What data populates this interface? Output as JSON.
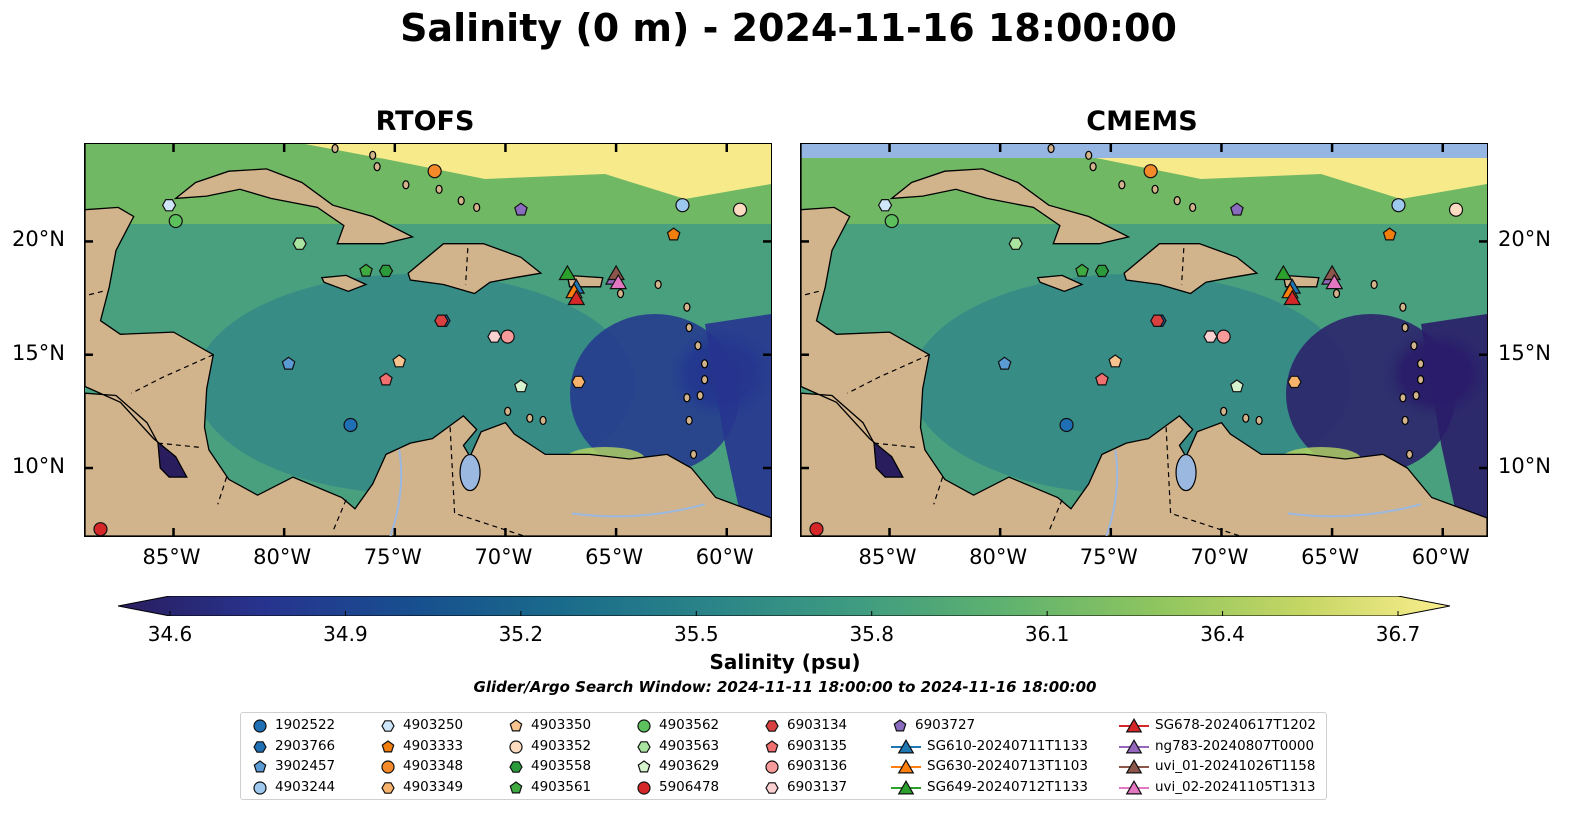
{
  "title": "Salinity (0 m) - 2024-11-16 18:00:00",
  "panels": [
    {
      "title": "RTOFS"
    },
    {
      "title": "CMEMS"
    }
  ],
  "axes": {
    "lon_ticks": [
      "85°W",
      "80°W",
      "75°W",
      "70°W",
      "65°W",
      "60°W"
    ],
    "lat_ticks": [
      "20°N",
      "15°N",
      "10°N"
    ],
    "lon_range": [
      -89,
      -58
    ],
    "lat_range": [
      7,
      24.3
    ]
  },
  "colorbar": {
    "label": "Salinity (psu)",
    "ticks": [
      "34.6",
      "34.9",
      "35.2",
      "35.5",
      "35.8",
      "36.1",
      "36.4",
      "36.7"
    ],
    "min": 34.6,
    "max": 36.7,
    "colormap": "haline-like",
    "colors": [
      "#2a1d5e",
      "#27348f",
      "#174f8f",
      "#1a6b8b",
      "#2a8488",
      "#3f9c80",
      "#5fb26f",
      "#8ec55f",
      "#c5d664",
      "#fbee8e"
    ]
  },
  "search_window": "Glider/Argo Search Window: 2024-11-11 18:00:00 to 2024-11-16 18:00:00",
  "colors": {
    "land": "#d2b48c",
    "lake": "#9ab8e0",
    "low_salinity": "#2a1d5e",
    "mid_salinity": "#3f9c80",
    "high_salinity": "#fbee8e"
  },
  "legend": [
    {
      "label": "1902522",
      "marker": "circle",
      "color": "#1f6fb5"
    },
    {
      "label": "2903766",
      "marker": "hexagon",
      "color": "#1f6fb5"
    },
    {
      "label": "3902457",
      "marker": "pentagon",
      "color": "#5b9bd5"
    },
    {
      "label": "4903244",
      "marker": "circle",
      "color": "#9ec9ef"
    },
    {
      "label": "4903250",
      "marker": "hexagon",
      "color": "#cfe6f8"
    },
    {
      "label": "4903333",
      "marker": "pentagon",
      "color": "#f07f0e"
    },
    {
      "label": "4903348",
      "marker": "circle",
      "color": "#f48a2a"
    },
    {
      "label": "4903349",
      "marker": "hexagon",
      "color": "#f7b36b"
    },
    {
      "label": "4903350",
      "marker": "pentagon",
      "color": "#f7c48f"
    },
    {
      "label": "4903352",
      "marker": "circle",
      "color": "#fbdcc0"
    },
    {
      "label": "4903558",
      "marker": "hexagon",
      "color": "#2a9a3a"
    },
    {
      "label": "4903561",
      "marker": "pentagon",
      "color": "#3faa3f"
    },
    {
      "label": "4903562",
      "marker": "circle",
      "color": "#5cc05c"
    },
    {
      "label": "4903563",
      "marker": "hexagon",
      "color": "#a9e5a0"
    },
    {
      "label": "4903629",
      "marker": "pentagon",
      "color": "#d6f5cf"
    },
    {
      "label": "5906478",
      "marker": "circle",
      "color": "#d62728"
    },
    {
      "label": "6903134",
      "marker": "hexagon",
      "color": "#d94040"
    },
    {
      "label": "6903135",
      "marker": "pentagon",
      "color": "#f07070"
    },
    {
      "label": "6903136",
      "marker": "circle",
      "color": "#f79a9a"
    },
    {
      "label": "6903137",
      "marker": "hexagon",
      "color": "#fbd0d0"
    },
    {
      "label": "6903727",
      "marker": "pentagon",
      "color": "#8a6cbf"
    },
    {
      "label": "SG610-20240711T1133",
      "marker": "triangle",
      "color": "#1f77b4"
    },
    {
      "label": "SG630-20240713T1103",
      "marker": "triangle",
      "color": "#ff7f0e"
    },
    {
      "label": "SG649-20240712T1133",
      "marker": "triangle",
      "color": "#2ca02c"
    },
    {
      "label": "SG678-20240617T1202",
      "marker": "triangle",
      "color": "#d62728"
    },
    {
      "label": "ng783-20240807T0000",
      "marker": "triangle",
      "color": "#9467bd"
    },
    {
      "label": "uvi_01-20241026T1158",
      "marker": "triangle",
      "color": "#8c564b"
    },
    {
      "label": "uvi_02-20241105T1313",
      "marker": "triangle",
      "color": "#e377c2"
    }
  ],
  "floats": [
    {
      "id": "1902522",
      "lon": -77.0,
      "lat": 11.9
    },
    {
      "id": "2903766",
      "lon": -72.8,
      "lat": 16.5
    },
    {
      "id": "3902457",
      "lon": -79.8,
      "lat": 14.6
    },
    {
      "id": "4903244",
      "lon": -62.0,
      "lat": 21.6
    },
    {
      "id": "4903250",
      "lon": -85.2,
      "lat": 21.6
    },
    {
      "id": "4903333",
      "lon": -62.4,
      "lat": 20.3
    },
    {
      "id": "4903348",
      "lon": -73.2,
      "lat": 23.1
    },
    {
      "id": "4903349",
      "lon": -66.7,
      "lat": 13.8
    },
    {
      "id": "4903350",
      "lon": -74.8,
      "lat": 14.7
    },
    {
      "id": "4903352",
      "lon": -59.4,
      "lat": 21.4
    },
    {
      "id": "4903558",
      "lon": -75.4,
      "lat": 18.7
    },
    {
      "id": "4903561",
      "lon": -76.3,
      "lat": 18.7
    },
    {
      "id": "4903562",
      "lon": -84.9,
      "lat": 20.9
    },
    {
      "id": "4903563",
      "lon": -79.3,
      "lat": 19.9
    },
    {
      "id": "4903629",
      "lon": -69.3,
      "lat": 13.6
    },
    {
      "id": "5906478",
      "lon": -88.3,
      "lat": 7.3
    },
    {
      "id": "6903134",
      "lon": -72.9,
      "lat": 16.5
    },
    {
      "id": "6903135",
      "lon": -75.4,
      "lat": 13.9
    },
    {
      "id": "6903136",
      "lon": -69.9,
      "lat": 15.8
    },
    {
      "id": "6903137",
      "lon": -70.5,
      "lat": 15.8
    },
    {
      "id": "6903727",
      "lon": -69.3,
      "lat": 21.4
    }
  ],
  "gliders": [
    {
      "id": "SG610-20240711T1133",
      "lon": -66.8,
      "lat": 18.0
    },
    {
      "id": "SG630-20240713T1103",
      "lon": -66.9,
      "lat": 17.8
    },
    {
      "id": "SG649-20240712T1133",
      "lon": -67.2,
      "lat": 18.6
    },
    {
      "id": "SG678-20240617T1202",
      "lon": -66.8,
      "lat": 17.5
    },
    {
      "id": "ng783-20240807T0000",
      "lon": -65.1,
      "lat": 18.4
    },
    {
      "id": "uvi_01-20241026T1158",
      "lon": -65.0,
      "lat": 18.6
    },
    {
      "id": "uvi_02-20241105T1313",
      "lon": -64.9,
      "lat": 18.2
    }
  ]
}
